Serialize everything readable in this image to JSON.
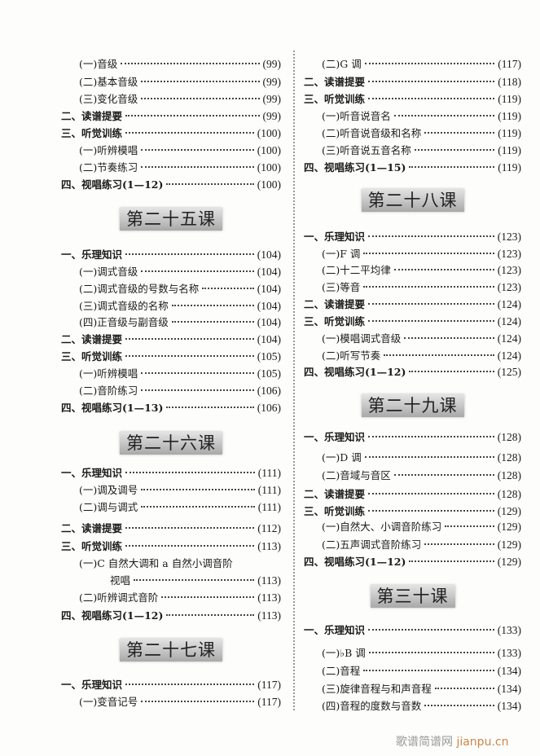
{
  "left": [
    {
      "level": 2,
      "label": "(一)音级",
      "page": "(99)"
    },
    {
      "level": 2,
      "label": "(二)基本音级",
      "page": "(99)"
    },
    {
      "level": 2,
      "label": "(三)变化音级",
      "page": "(99)"
    },
    {
      "level": 1,
      "label": "二、读谱提要",
      "page": "(99)"
    },
    {
      "level": 1,
      "label": "三、听觉训练",
      "page": "(100)"
    },
    {
      "level": 2,
      "label": "(一)听辨模唱",
      "page": "(100)"
    },
    {
      "level": 2,
      "label": "(二)节奏练习",
      "page": "(100)"
    },
    {
      "level": 1,
      "label": "四、视唱练习(1—12)",
      "page": "(100)"
    },
    {
      "heading": "第二十五课"
    },
    {
      "level": 1,
      "label": "一、乐理知识",
      "page": "(104)"
    },
    {
      "level": 2,
      "label": "(一)调式音级",
      "page": "(104)"
    },
    {
      "level": 2,
      "label": "(二)调式音级的号数与名称",
      "page": "(104)"
    },
    {
      "level": 2,
      "label": "(三)调式音级的名称",
      "page": "(104)"
    },
    {
      "level": 2,
      "label": "(四)正音级与副音级",
      "page": "(104)"
    },
    {
      "level": 1,
      "label": "二、读谱提要",
      "page": "(104)"
    },
    {
      "level": 1,
      "label": "三、听觉训练",
      "page": "(105)"
    },
    {
      "level": 2,
      "label": "(一)听辨模唱",
      "page": "(105)"
    },
    {
      "level": 2,
      "label": "(二)音阶练习",
      "page": "(106)"
    },
    {
      "level": 1,
      "label": "四、视唱练习(1—13)",
      "page": "(106)"
    },
    {
      "heading": "第二十六课"
    },
    {
      "level": 1,
      "label": "一、乐理知识",
      "page": "(111)"
    },
    {
      "level": 2,
      "label": "(一)调及调号",
      "page": "(111)"
    },
    {
      "level": 2,
      "label": "(二)调与调式",
      "page": "(111)"
    },
    {
      "level": 1,
      "label": "二、读谱提要",
      "page": "(112)"
    },
    {
      "level": 1,
      "label": "三、听觉训练",
      "page": "(113)"
    },
    {
      "level": 2,
      "label": "(一)C 自然大调和 a 自然小调音阶",
      "page": ""
    },
    {
      "level": 3,
      "label": "视唱",
      "page": "(113)"
    },
    {
      "level": 2,
      "label": "(二)听辨调式音阶",
      "page": "(113)"
    },
    {
      "level": 1,
      "label": "四、视唱练习(1—12)",
      "page": "(113)"
    },
    {
      "heading": "第二十七课"
    },
    {
      "level": 1,
      "label": "一、乐理知识",
      "page": "(117)"
    },
    {
      "level": 2,
      "label": "(一)变音记号",
      "page": "(117)"
    }
  ],
  "right": [
    {
      "level": 2,
      "label": "(二)G 调",
      "page": "(117)"
    },
    {
      "level": 1,
      "label": "二、读谱提要",
      "page": "(118)"
    },
    {
      "level": 1,
      "label": "三、听觉训练",
      "page": "(119)"
    },
    {
      "level": 2,
      "label": "(一)听音说音名",
      "page": "(119)"
    },
    {
      "level": 2,
      "label": "(二)听音说音级和名称",
      "page": "(119)"
    },
    {
      "level": 2,
      "label": "(三)听音说五音名称",
      "page": "(119)"
    },
    {
      "level": 1,
      "label": "四、视唱练习(1—15)",
      "page": "(119)"
    },
    {
      "heading": "第二十八课"
    },
    {
      "level": 1,
      "label": "一、乐理知识",
      "page": "(123)"
    },
    {
      "level": 2,
      "label": "(一)F 调",
      "page": "(123)"
    },
    {
      "level": 2,
      "label": "(二)十二平均律",
      "page": "(123)"
    },
    {
      "level": 2,
      "label": "(三)等音",
      "page": "(123)"
    },
    {
      "level": 1,
      "label": "二、读谱提要",
      "page": "(124)"
    },
    {
      "level": 1,
      "label": "三、听觉训练",
      "page": "(124)"
    },
    {
      "level": 2,
      "label": "(一)模唱调式音级",
      "page": "(124)"
    },
    {
      "level": 2,
      "label": "(二)听写节奏",
      "page": "(124)"
    },
    {
      "level": 1,
      "label": "四、视唱练习(1—12)",
      "page": "(125)"
    },
    {
      "heading": "第二十九课"
    },
    {
      "level": 1,
      "label": "一、乐理知识",
      "page": "(128)"
    },
    {
      "level": 2,
      "label": "(一)D 调",
      "page": "(128)"
    },
    {
      "level": 2,
      "label": "(二)音域与音区",
      "page": "(128)"
    },
    {
      "level": 1,
      "label": "二、读谱提要",
      "page": "(128)"
    },
    {
      "level": 1,
      "label": "三、听觉训练",
      "page": "(129)"
    },
    {
      "level": 2,
      "label": "(一)自然大、小调音阶练习",
      "page": "(129)"
    },
    {
      "level": 2,
      "label": "(二)五声调式音阶练习",
      "page": "(129)"
    },
    {
      "level": 1,
      "label": "四、视唱练习(1—12)",
      "page": "(129)"
    },
    {
      "heading": "第三十课"
    },
    {
      "level": 1,
      "label": "一、乐理知识",
      "page": "(133)"
    },
    {
      "level": 2,
      "label": "(一)♭B 调",
      "page": "(133)"
    },
    {
      "level": 2,
      "label": "(二)音程",
      "page": "(134)"
    },
    {
      "level": 2,
      "label": "(三)旋律音程与和声音程",
      "page": "(134)"
    },
    {
      "level": 2,
      "label": "(四)音程的度数与音数",
      "page": "(134)"
    }
  ],
  "watermark": {
    "cn": "歌谱简谱网",
    "site": "jianpu.cn"
  }
}
